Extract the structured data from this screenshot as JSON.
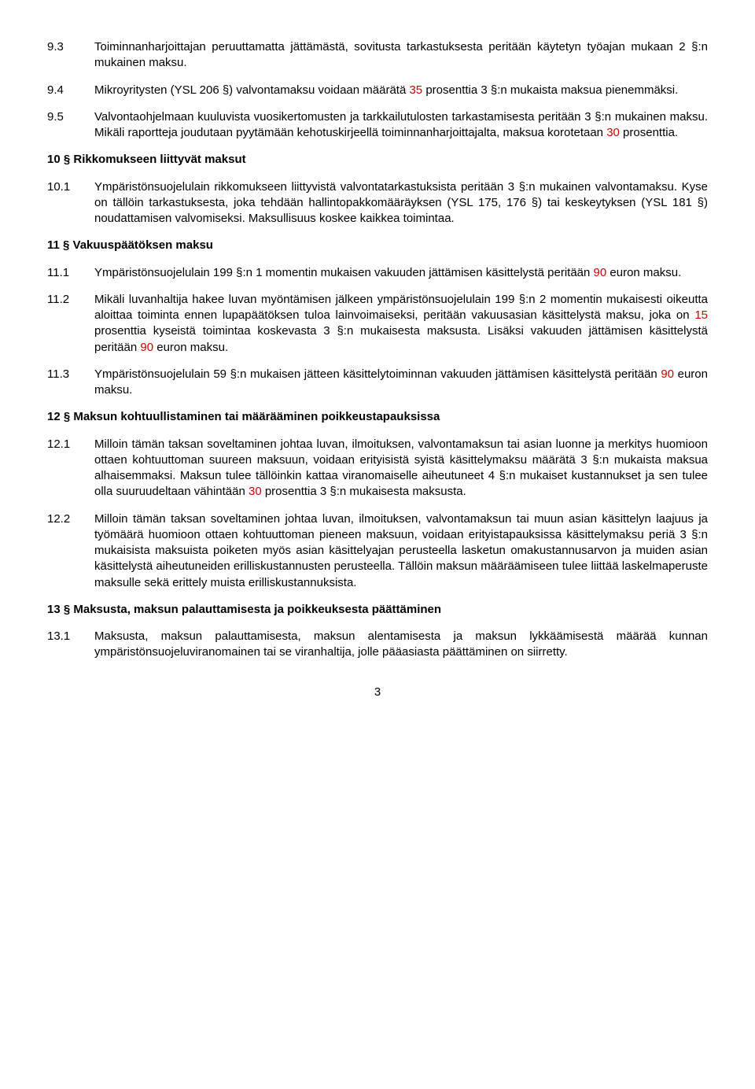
{
  "colors": {
    "text": "#000000",
    "highlight": "#d00000",
    "background": "#ffffff"
  },
  "typography": {
    "font_family": "Arial, Helvetica, sans-serif",
    "body_fontsize_pt": 11,
    "heading_weight": "bold"
  },
  "page_number": "3",
  "items": [
    {
      "type": "para",
      "num": "9.3",
      "segs": [
        {
          "t": "Toiminnanharjoittajan peruuttamatta jättämästä, sovitusta tarkastuksesta peritään käytetyn työajan mukaan 2 §:n mukainen maksu."
        }
      ]
    },
    {
      "type": "para",
      "num": "9.4",
      "segs": [
        {
          "t": "Mikroyritysten (YSL 206 §) valvontamaksu voidaan määrätä "
        },
        {
          "t": "35",
          "red": true
        },
        {
          "t": " prosenttia 3 §:n mukaista maksua pienemmäksi."
        }
      ]
    },
    {
      "type": "para",
      "num": "9.5",
      "segs": [
        {
          "t": "Valvontaohjelmaan kuuluvista vuosikertomusten ja tarkkailutulosten tarkastamisesta peritään 3 §:n mukainen maksu. Mikäli raportteja joudutaan pyytämään kehotuskirjeellä toiminnanharjoittajalta, maksua korotetaan "
        },
        {
          "t": "30",
          "red": true
        },
        {
          "t": " prosenttia."
        }
      ]
    },
    {
      "type": "heading",
      "text": "10 § Rikkomukseen liittyvät maksut"
    },
    {
      "type": "para",
      "num": "10.1",
      "segs": [
        {
          "t": "Ympäristönsuojelulain rikkomukseen liittyvistä valvontatarkastuksista peritään 3 §:n mukainen valvontamaksu. Kyse on tällöin tarkastuksesta, joka tehdään hallintopakkomääräyksen (YSL 175, 176 §) tai keskeytyksen (YSL 181 §) noudattamisen valvomiseksi. Maksullisuus koskee kaikkea toimintaa."
        }
      ]
    },
    {
      "type": "heading",
      "text": "11 § Vakuuspäätöksen maksu"
    },
    {
      "type": "para",
      "num": "11.1",
      "segs": [
        {
          "t": "Ympäristönsuojelulain 199 §:n 1 momentin mukaisen vakuuden jättämisen käsittelystä peritään "
        },
        {
          "t": "90",
          "red": true
        },
        {
          "t": " euron maksu."
        }
      ]
    },
    {
      "type": "para",
      "num": "11.2",
      "segs": [
        {
          "t": "Mikäli luvanhaltija hakee luvan myöntämisen jälkeen ympäristönsuojelulain 199 §:n 2 momentin mukaisesti oikeutta aloittaa toiminta ennen lupapäätöksen tuloa lainvoimaiseksi, peritään vakuusasian käsittelystä maksu, joka on "
        },
        {
          "t": "15",
          "red": true
        },
        {
          "t": " prosenttia kyseistä toimintaa koskevasta 3 §:n mukaisesta maksusta. Lisäksi vakuuden jättämisen käsittelystä peritään "
        },
        {
          "t": "90",
          "red": true
        },
        {
          "t": " euron maksu."
        }
      ]
    },
    {
      "type": "para",
      "num": "11.3",
      "segs": [
        {
          "t": "Ympäristönsuojelulain 59 §:n mukaisen jätteen käsittelytoiminnan vakuuden jättämisen käsittelystä peritään "
        },
        {
          "t": "90",
          "red": true
        },
        {
          "t": " euron maksu."
        }
      ]
    },
    {
      "type": "heading",
      "text": "12 § Maksun kohtuullistaminen tai määrääminen poikkeustapauksissa"
    },
    {
      "type": "para",
      "num": "12.1",
      "segs": [
        {
          "t": "Milloin tämän taksan soveltaminen johtaa luvan, ilmoituksen, valvontamaksun tai asian luonne ja merkitys huomioon ottaen kohtuuttoman suureen maksuun, voidaan erityisistä syistä käsittelymaksu määrätä 3 §:n mukaista maksua alhaisemmaksi. Maksun tulee tällöinkin kattaa viranomaiselle aiheutuneet 4 §:n mukaiset kustannukset ja sen tulee olla suuruudeltaan vähintään "
        },
        {
          "t": "30",
          "red": true
        },
        {
          "t": " prosenttia 3 §:n mukaisesta maksusta."
        }
      ]
    },
    {
      "type": "para",
      "num": "12.2",
      "segs": [
        {
          "t": "Milloin tämän taksan soveltaminen johtaa luvan, ilmoituksen, valvontamaksun tai muun asian käsittelyn laajuus ja työmäärä huomioon ottaen kohtuuttoman pieneen maksuun, voidaan erityistapauksissa käsittelymaksu periä 3 §:n mukaisista maksuista poiketen myös asian käsittelyajan perusteella lasketun omakustannusarvon ja muiden asian käsittelystä aiheutuneiden erilliskustannusten perusteella. Tällöin maksun määräämiseen tulee liittää laskelmaperuste maksulle sekä erittely muista erilliskustannuksista."
        }
      ]
    },
    {
      "type": "heading",
      "text": "13 § Maksusta, maksun palauttamisesta ja poikkeuksesta päättäminen"
    },
    {
      "type": "para",
      "num": "13.1",
      "segs": [
        {
          "t": "Maksusta, maksun palauttamisesta, maksun alentamisesta ja maksun lykkäämisestä määrää kunnan ympäristönsuojeluviranomainen tai se viranhaltija, jolle pääasiasta päättäminen on siirretty."
        }
      ]
    }
  ]
}
